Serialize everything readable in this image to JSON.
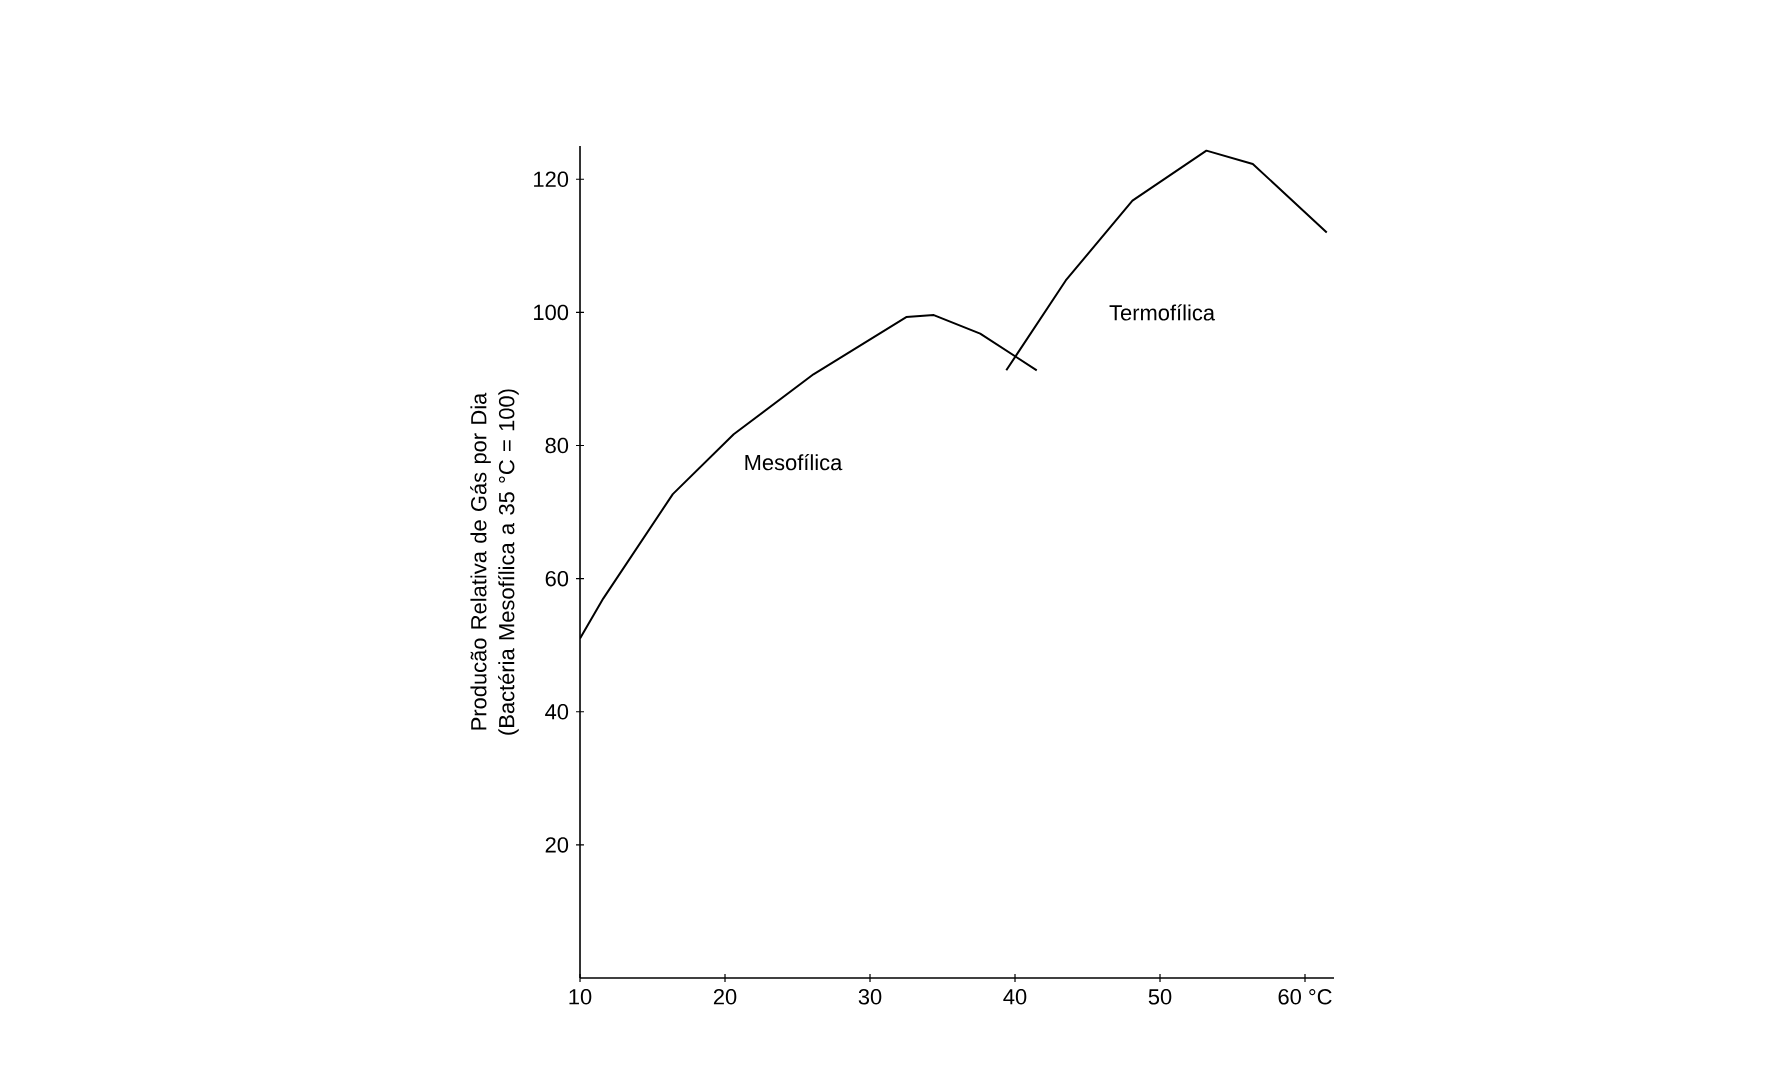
{
  "chart_data": {
    "type": "line",
    "ylabel": "Producão Relativa de Gás por Dia (Bactéria Mesofílica a 35 °C = 100)",
    "xlim": [
      10,
      62
    ],
    "xticks": [
      10,
      20,
      30,
      40,
      50,
      {
        "value": 60,
        "label": "60 °C"
      }
    ],
    "ylim": [
      0,
      125
    ],
    "yticks": [
      20,
      40,
      60,
      80,
      100,
      120
    ],
    "grid": false,
    "legend": false,
    "series": [
      {
        "name": "Mesofílica",
        "color": "#000000",
        "x": [
          10,
          11.6,
          16.4,
          20.6,
          26.1,
          32.5,
          34.4,
          37.6,
          41.5
        ],
        "values": [
          51,
          57,
          72.7,
          81.7,
          90.7,
          99.3,
          99.6,
          96.8,
          91.3
        ]
      },
      {
        "name": "Termofílica",
        "color": "#000000",
        "x": [
          39.4,
          43.5,
          48.1,
          53.2,
          56.4,
          61.5
        ],
        "values": [
          91.3,
          104.8,
          116.8,
          124.3,
          122.3,
          112
        ]
      }
    ]
  }
}
